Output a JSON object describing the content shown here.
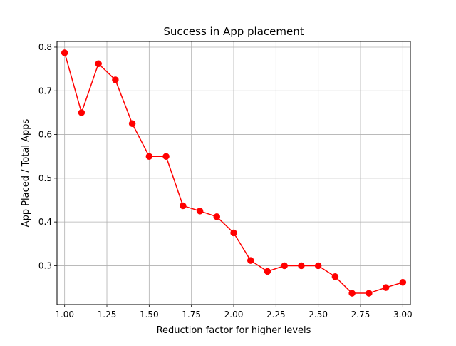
{
  "chart_data": {
    "type": "line",
    "title": "Success in App placement",
    "xlabel": "Reduction factor for higher levels",
    "ylabel": "App Placed / Total Apps",
    "xlim": [
      0.955,
      3.045
    ],
    "ylim": [
      0.211,
      0.813
    ],
    "xticks": [
      1.0,
      1.25,
      1.5,
      1.75,
      2.0,
      2.25,
      2.5,
      2.75,
      3.0
    ],
    "xtick_labels": [
      "1.00",
      "1.25",
      "1.50",
      "1.75",
      "2.00",
      "2.25",
      "2.50",
      "2.75",
      "3.00"
    ],
    "yticks": [
      0.3,
      0.4,
      0.5,
      0.6,
      0.7,
      0.8
    ],
    "ytick_labels": [
      "0.3",
      "0.4",
      "0.5",
      "0.6",
      "0.7",
      "0.8"
    ],
    "grid": true,
    "x": [
      1.0,
      1.1,
      1.2,
      1.3,
      1.4,
      1.5,
      1.6,
      1.7,
      1.8,
      1.9,
      2.0,
      2.1,
      2.2,
      2.3,
      2.4,
      2.5,
      2.6,
      2.7,
      2.8,
      2.9,
      3.0
    ],
    "series": [
      {
        "color": "#ff0000",
        "marker": "circle",
        "values": [
          0.787,
          0.65,
          0.762,
          0.725,
          0.625,
          0.55,
          0.55,
          0.437,
          0.425,
          0.412,
          0.375,
          0.312,
          0.287,
          0.3,
          0.3,
          0.3,
          0.275,
          0.237,
          0.237,
          0.25,
          0.262
        ]
      }
    ]
  }
}
